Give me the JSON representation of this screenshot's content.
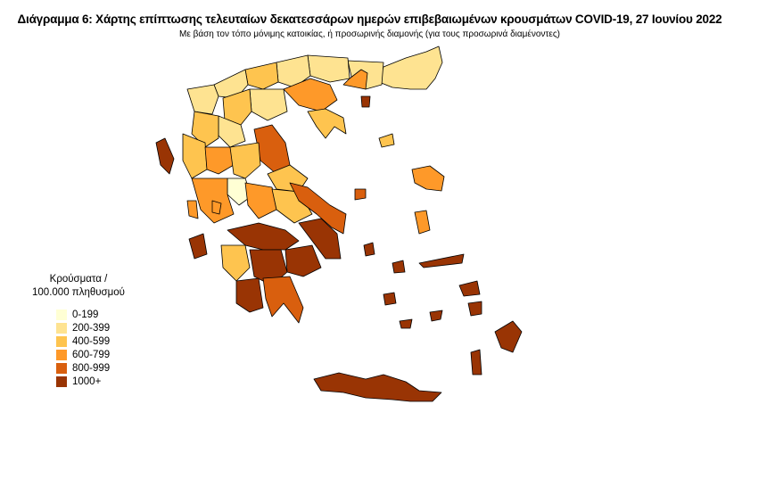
{
  "title": "Διάγραμμα 6: Χάρτης επίπτωσης τελευταίων δεκατεσσάρων ημερών επιβεβαιωμένων κρουσμάτων COVID-19, 27 Ιουνίου 2022",
  "subtitle": "Με βάση τον τόπο μόνιμης κατοικίας, ή προσωρινής διαμονής (για τους προσωρινά διαμένοντες)",
  "legend": {
    "title_line1": "Κρούσματα /",
    "title_line2": "100.000 πληθυσμού",
    "items": [
      {
        "label": "0-199",
        "color": "#ffffd4"
      },
      {
        "label": "200-399",
        "color": "#fee391"
      },
      {
        "label": "400-599",
        "color": "#fec44f"
      },
      {
        "label": "600-799",
        "color": "#fe9929"
      },
      {
        "label": "800-999",
        "color": "#d95f0e"
      },
      {
        "label": "1000+",
        "color": "#993404"
      }
    ]
  }
}
